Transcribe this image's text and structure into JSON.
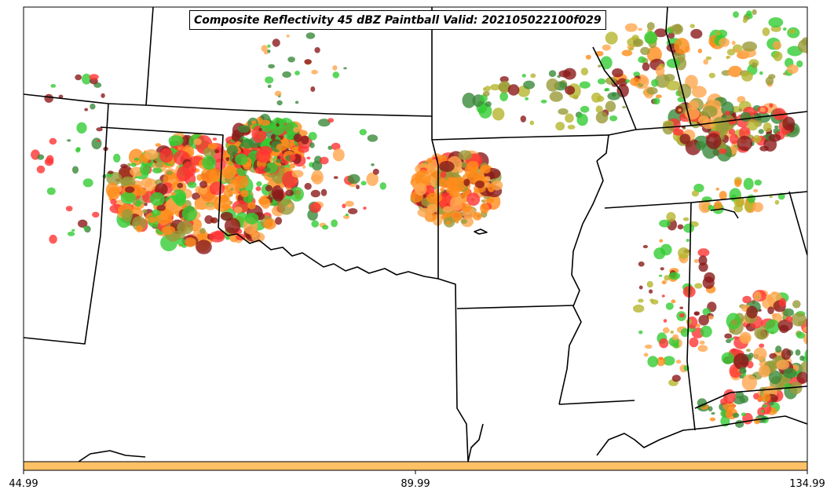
{
  "title": "Composite Reflectivity 45 dBZ Paintball Valid: 202105022100f029",
  "colorbar": {
    "color": "#ffc166",
    "tick_labels": [
      "44.99",
      "89.99",
      "134.99"
    ]
  },
  "colors": {
    "red": "#ff3333",
    "orange": "#ff8c1a",
    "light_orange": "#ffa64d",
    "green": "#33cc33",
    "dark_green": "#3a8a3a",
    "olive": "#9a9a3a",
    "dark_red": "#8b1a1a",
    "yellow_olive": "#b5b52e"
  }
}
